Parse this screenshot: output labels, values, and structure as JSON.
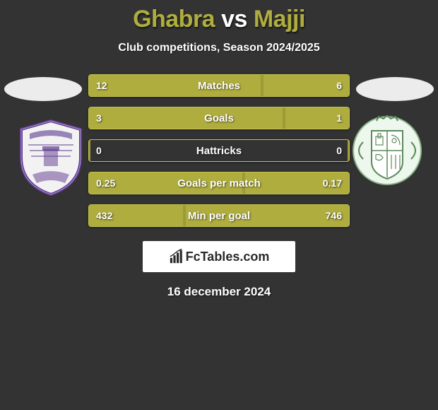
{
  "title": {
    "player1": "Ghabra",
    "vs": "vs",
    "player2": "Majji"
  },
  "subtitle": "Club competitions, Season 2024/2025",
  "date": "16 december 2024",
  "logo_text": "FcTables.com",
  "colors": {
    "bar_fill": "#afad3e",
    "bar_border": "#c2c24d",
    "bg": "#333333",
    "title_accent": "#afad3e",
    "text": "#ffffff",
    "ellipse": "#ececec",
    "logo_bg": "#ffffff"
  },
  "crest_left": {
    "stroke": "#5d3a8f",
    "fill": "#f2f2f2",
    "accent": "#b198d1"
  },
  "crest_right": {
    "stroke": "#5a8a5a",
    "fill": "#edf7ed",
    "accent": "#8ab58a"
  },
  "stats": [
    {
      "label": "Matches",
      "left_val": "12",
      "right_val": "6",
      "left_pct": 66.7,
      "right_pct": 33.3
    },
    {
      "label": "Goals",
      "left_val": "3",
      "right_val": "1",
      "left_pct": 75.0,
      "right_pct": 25.0
    },
    {
      "label": "Hattricks",
      "left_val": "0",
      "right_val": "0",
      "left_pct": 0.0,
      "right_pct": 0.0
    },
    {
      "label": "Goals per match",
      "left_val": "0.25",
      "right_val": "0.17",
      "left_pct": 59.5,
      "right_pct": 40.5
    },
    {
      "label": "Min per goal",
      "left_val": "432",
      "right_val": "746",
      "left_pct": 36.7,
      "right_pct": 63.3
    }
  ]
}
